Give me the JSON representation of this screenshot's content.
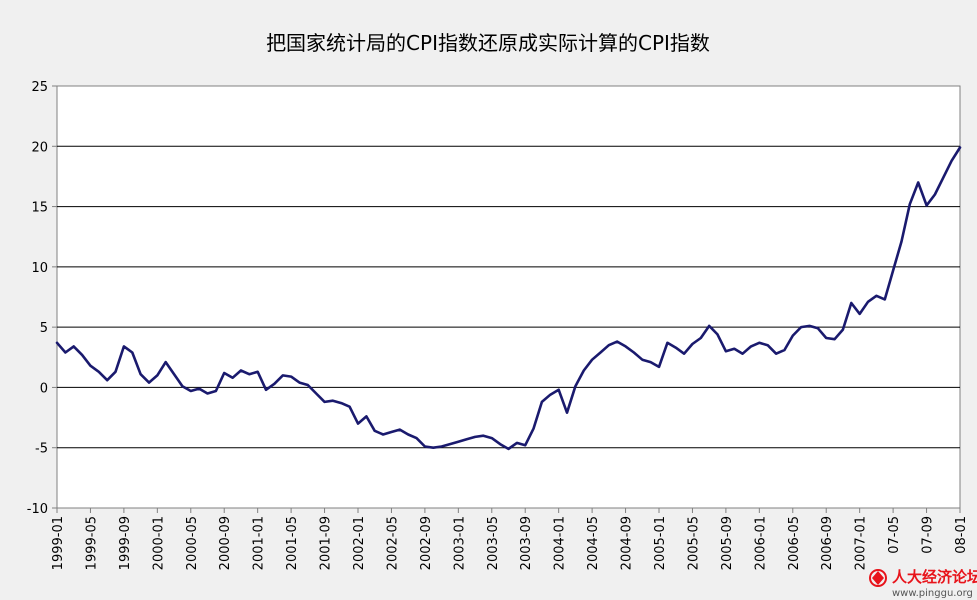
{
  "chart_data": {
    "type": "line",
    "title": "把国家统计局的CPI指数还原成实际计算的CPI指数",
    "xlabel": "",
    "ylabel": "",
    "ylim": [
      -10,
      25
    ],
    "yticks": [
      25,
      20,
      15,
      10,
      5,
      0,
      -5,
      -10
    ],
    "grid": true,
    "legend": "none",
    "x": [
      "1999-01",
      "1999-02",
      "1999-03",
      "1999-04",
      "1999-05",
      "1999-06",
      "1999-07",
      "1999-08",
      "1999-09",
      "1999-10",
      "1999-11",
      "1999-12",
      "2000-01",
      "2000-02",
      "2000-03",
      "2000-04",
      "2000-05",
      "2000-06",
      "2000-07",
      "2000-08",
      "2000-09",
      "2000-10",
      "2000-11",
      "2000-12",
      "2001-01",
      "2001-02",
      "2001-03",
      "2001-04",
      "2001-05",
      "2001-06",
      "2001-07",
      "2001-08",
      "2001-09",
      "2001-10",
      "2001-11",
      "2001-12",
      "2002-01",
      "2002-02",
      "2002-03",
      "2002-04",
      "2002-05",
      "2002-06",
      "2002-07",
      "2002-08",
      "2002-09",
      "2002-10",
      "2002-11",
      "2002-12",
      "2003-01",
      "2003-02",
      "2003-03",
      "2003-04",
      "2003-05",
      "2003-06",
      "2003-07",
      "2003-08",
      "2003-09",
      "2003-10",
      "2003-11",
      "2003-12",
      "2004-01",
      "2004-02",
      "2004-03",
      "2004-04",
      "2004-05",
      "2004-06",
      "2004-07",
      "2004-08",
      "2004-09",
      "2004-10",
      "2004-11",
      "2004-12",
      "2005-01",
      "2005-02",
      "2005-03",
      "2005-04",
      "2005-05",
      "2005-06",
      "2005-07",
      "2005-08",
      "2005-09",
      "2005-10",
      "2005-11",
      "2005-12",
      "2006-01",
      "2006-02",
      "2006-03",
      "2006-04",
      "2006-05",
      "2006-06",
      "2006-07",
      "2006-08",
      "2006-09",
      "2006-10",
      "2006-11",
      "2006-12",
      "2007-01",
      "2007-02",
      "2007-03",
      "2007-04",
      "2007-05",
      "2007-06",
      "2007-07",
      "2007-08",
      "2007-09",
      "2007-10",
      "2007-11",
      "2007-12",
      "2008-01"
    ],
    "xtick_labels": [
      "1999-01",
      "1999-05",
      "1999-09",
      "2000-01",
      "2000-05",
      "2000-09",
      "2001-01",
      "2001-05",
      "2001-09",
      "2002-01",
      "2002-05",
      "2002-09",
      "2003-01",
      "2003-05",
      "2003-09",
      "2004-01",
      "2004-05",
      "2004-09",
      "2005-01",
      "2005-05",
      "2005-09",
      "2006-01",
      "2006-05",
      "2006-09",
      "2007-01",
      "07-05",
      "07-09",
      "08-01"
    ],
    "series": [
      {
        "color": "#1a1a6e",
        "values": [
          3.7,
          2.9,
          3.4,
          2.7,
          1.8,
          1.3,
          0.6,
          1.3,
          3.4,
          2.9,
          1.1,
          0.4,
          1.0,
          2.1,
          1.1,
          0.1,
          -0.3,
          -0.1,
          -0.5,
          -0.3,
          1.2,
          0.8,
          1.4,
          1.1,
          1.3,
          -0.2,
          0.3,
          1.0,
          0.9,
          0.4,
          0.2,
          -0.5,
          -1.2,
          -1.1,
          -1.3,
          -1.6,
          -3.0,
          -2.4,
          -3.6,
          -3.9,
          -3.7,
          -3.5,
          -3.9,
          -4.2,
          -4.9,
          -5.0,
          -4.9,
          -4.7,
          -4.5,
          -4.3,
          -4.1,
          -4.0,
          -4.2,
          -4.7,
          -5.1,
          -4.6,
          -4.8,
          -3.4,
          -1.2,
          -0.6,
          -0.2,
          -2.1,
          0.1,
          1.4,
          2.3,
          2.9,
          3.5,
          3.8,
          3.4,
          2.9,
          2.3,
          2.1,
          1.7,
          3.7,
          3.3,
          2.8,
          3.6,
          4.1,
          5.1,
          4.4,
          3.0,
          3.2,
          2.8,
          3.4,
          3.7,
          3.5,
          2.8,
          3.1,
          4.3,
          5.0,
          5.1,
          4.9,
          4.1,
          4.0,
          4.8,
          7.0,
          6.1,
          7.1,
          7.6,
          7.3,
          9.7,
          12.1,
          15.2,
          17.0,
          15.1,
          16.0,
          17.4,
          18.8,
          19.9
        ]
      }
    ]
  },
  "watermark": {
    "site_name": "人大经济论坛",
    "url": "www.pinggu.org",
    "brand_color": "#e8141b"
  }
}
